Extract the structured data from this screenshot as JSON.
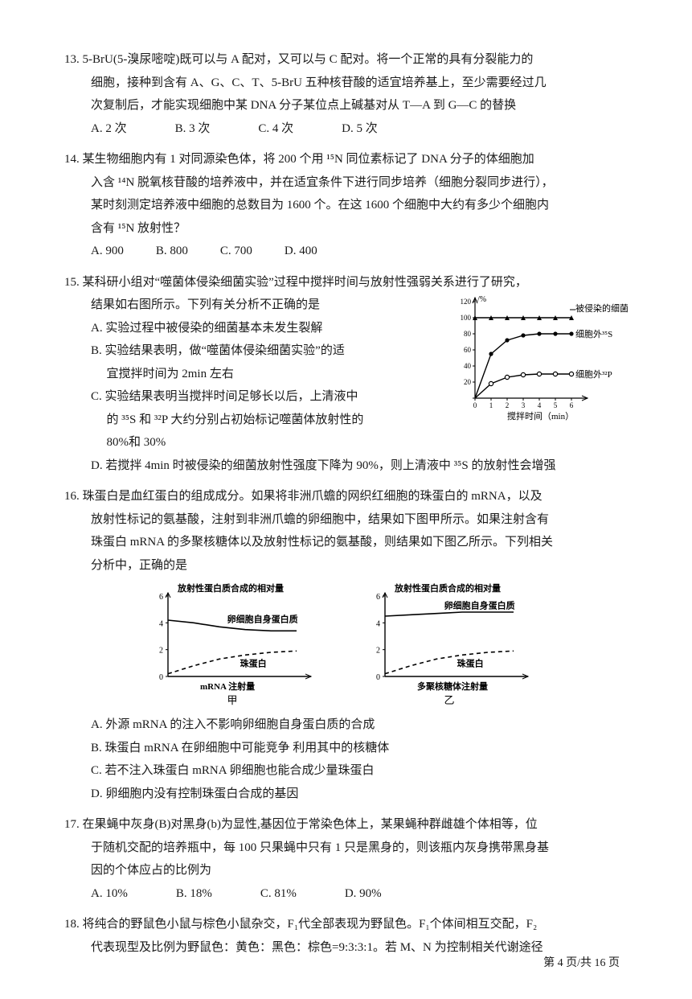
{
  "q13": {
    "num": "13.",
    "text1": "5-BrU(5-溴尿嘧啶)既可以与 A 配对，又可以与 C 配对。将一个正常的具有分裂能力的",
    "text2": "细胞，接种到含有 A、G、C、T、5-BrU 五种核苷酸的适宜培养基上，至少需要经过几",
    "text3": "次复制后，才能实现细胞中某 DNA 分子某位点上碱基对从 T—A 到 G—C 的替换",
    "opts": {
      "a": "A. 2 次",
      "b": "B. 3 次",
      "c": "C. 4 次",
      "d": "D. 5 次"
    }
  },
  "q14": {
    "num": "14.",
    "text1": "某生物细胞内有 1 对同源染色体，将 200 个用 ¹⁵N 同位素标记了 DNA 分子的体细胞加",
    "text2": "入含 ¹⁴N 脱氧核苷酸的培养液中，并在适宜条件下进行同步培养（细胞分裂同步进行），",
    "text3": "某时刻测定培养液中细胞的总数目为 1600 个。在这 1600 个细胞中大约有多少个细胞内",
    "text4": "含有 ¹⁵N 放射性？",
    "opts": {
      "a": "A. 900",
      "b": "B. 800",
      "c": "C. 700",
      "d": "D. 400"
    }
  },
  "q15": {
    "num": "15.",
    "text1": "某科研小组对“噬菌体侵染细菌实验”过程中搅拌时间与放射性强弱关系进行了研究，",
    "text2": "结果如右图所示。下列有关分析不正确的是",
    "optA": "A. 实验过程中被侵染的细菌基本未发生裂解",
    "optB1": "B. 实验结果表明，做“噬菌体侵染细菌实验”的适",
    "optB2": "宜搅拌时间为 2min 左右",
    "optC1": "C. 实验结果表明当搅拌时间足够长以后，上清液中",
    "optC2": "的 ³⁵S 和 ³²P 大约分别占初始标记噬菌体放射性的",
    "optC3": "80%和 30%",
    "optD": "D. 若搅拌 4min 时被侵染的细菌放射性强度下降为 90%，则上清液中 ³⁵S 的放射性会增强",
    "chart": {
      "y_unit": "/%",
      "y_ticks": [
        0,
        20,
        40,
        60,
        80,
        100,
        120
      ],
      "x_ticks": [
        0,
        1,
        2,
        3,
        4,
        5,
        6
      ],
      "x_label": "搅拌时间（min）",
      "series1_label": "被侵染的细菌",
      "series2_label": "细胞外³⁵S",
      "series3_label": "细胞外³²P",
      "series1_y": [
        100,
        100,
        100,
        100,
        100,
        100,
        100
      ],
      "series2_y": [
        0,
        55,
        72,
        78,
        80,
        80,
        80
      ],
      "series3_y": [
        0,
        18,
        26,
        29,
        30,
        30,
        30
      ],
      "line_color": "#000000",
      "marker1": "triangle",
      "marker2": "circle-filled",
      "marker3": "circle-open"
    }
  },
  "q16": {
    "num": "16.",
    "text1": "珠蛋白是血红蛋白的组成成分。如果将非洲爪蟾的网织红细胞的珠蛋白的 mRNA，以及",
    "text2": "放射性标记的氨基酸，注射到非洲爪蟾的卵细胞中，结果如下图甲所示。如果注射含有",
    "text3": "珠蛋白 mRNA 的多聚核糖体以及放射性标记的氨基酸，则结果如下图乙所示。下列相关",
    "text4": "分析中，正确的是",
    "optA": "A. 外源 mRNA 的注入不影响卵细胞自身蛋白质的合成",
    "optB": "B. 珠蛋白 mRNA 在卵细胞中可能竞争 利用其中的核糖体",
    "optC": "C. 若不注入珠蛋白 mRNA 卵细胞也能合成少量珠蛋白",
    "optD": "D. 卵细胞内没有控制珠蛋白合成的基因",
    "chart": {
      "y_label": "放射性蛋白质合成的相对量",
      "y_ticks": [
        0,
        2,
        4,
        6
      ],
      "x_label_a": "mRNA 注射量",
      "x_label_b": "多聚核糖体注射量",
      "caption_a": "甲",
      "caption_b": "乙",
      "line1_label": "卵细胞自身蛋白质",
      "line2_label": "珠蛋白",
      "a_line1_y": [
        4.2,
        4.0,
        3.7,
        3.5,
        3.4,
        3.4
      ],
      "a_line2_y": [
        0.2,
        0.8,
        1.3,
        1.6,
        1.8,
        1.9
      ],
      "b_line1_y": [
        4.5,
        4.6,
        4.7,
        4.8,
        4.8,
        4.8
      ],
      "b_line2_y": [
        0.2,
        0.8,
        1.3,
        1.6,
        1.8,
        1.9
      ],
      "line_color": "#000000"
    }
  },
  "q17": {
    "num": "17.",
    "text1": "在果蝇中灰身(B)对黑身(b)为显性,基因位于常染色体上，某果蝇种群雌雄个体相等，位",
    "text2": "于随机交配的培养瓶中，每 100 只果蝇中只有 1 只是黑身的，则该瓶内灰身携带黑身基",
    "text3": "因的个体应占的比例为",
    "opts": {
      "a": "A. 10%",
      "b": "B. 18%",
      "c": "C. 81%",
      "d": "D. 90%"
    }
  },
  "q18": {
    "num": "18.",
    "text1": "将纯合的野鼠色小鼠与棕色小鼠杂交，F₁代全部表现为野鼠色。F₁个体间相互交配，F₂",
    "text2": "代表现型及比例为野鼠色：黄色：黑色：棕色=9:3:3:1。若 M、N 为控制相关代谢途径"
  },
  "footer": "第 4 页/共 16 页"
}
